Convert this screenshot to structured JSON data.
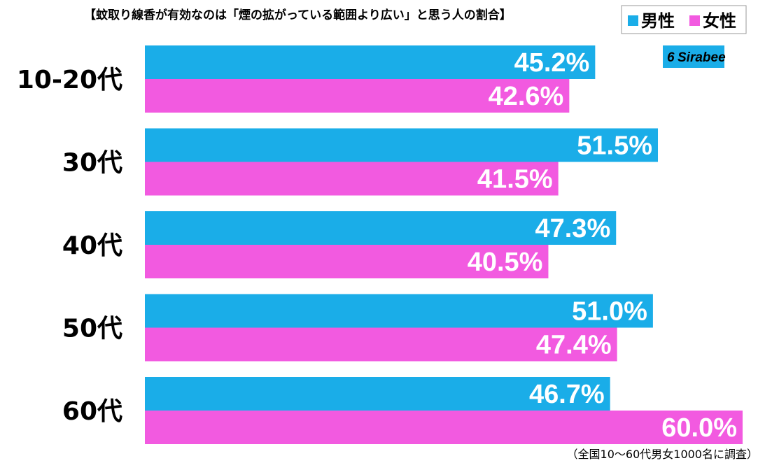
{
  "chart_data": {
    "type": "bar",
    "orientation": "horizontal",
    "title": "【蚊取り線香が有効なのは「煙の拡がっている範囲より広い」と思う人の割合】",
    "categories": [
      "10-20代",
      "30代",
      "40代",
      "50代",
      "60代"
    ],
    "series": [
      {
        "name": "男性",
        "color": "#1aade8",
        "values": [
          45.2,
          51.5,
          47.3,
          51.0,
          46.7
        ]
      },
      {
        "name": "女性",
        "color": "#f25ae0",
        "values": [
          42.6,
          41.5,
          40.5,
          47.4,
          60.0
        ]
      }
    ],
    "value_labels": [
      [
        "45.2%",
        "51.5%",
        "47.3%",
        "51.0%",
        "46.7%"
      ],
      [
        "42.6%",
        "41.5%",
        "40.5%",
        "47.4%",
        "60.0%"
      ]
    ],
    "unit": "%",
    "xlim": [
      0,
      60
    ],
    "legend_position": "top-right",
    "footnote": "（全国10～60代男女1000名に調査）",
    "logo_text": "Sirabee",
    "logo_color": "#1aade8"
  }
}
